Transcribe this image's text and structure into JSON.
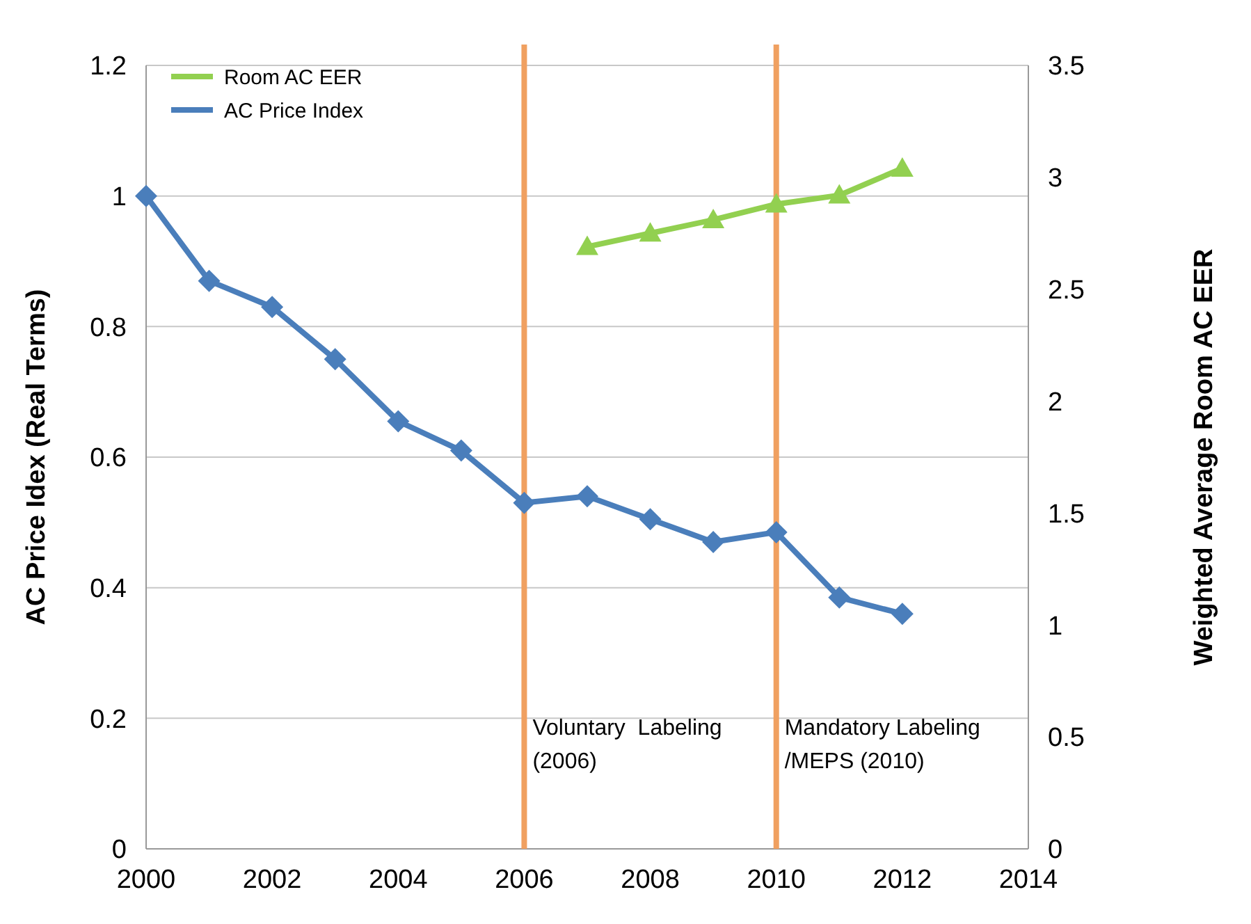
{
  "chart_data": {
    "type": "line",
    "xlabel": null,
    "ylabel": "AC Price Idex (Real Terms)",
    "y2label": "Weighted Average Room AC EER",
    "xlim": [
      2000,
      2014
    ],
    "xticks": [
      2000,
      2002,
      2004,
      2006,
      2008,
      2010,
      2012,
      2014
    ],
    "ylim": [
      0,
      1.2
    ],
    "yticks": [
      0,
      0.2,
      0.4,
      0.6,
      0.8,
      1,
      1.2
    ],
    "y2lim": [
      0,
      3.5
    ],
    "y2ticks": [
      0,
      0.5,
      1,
      1.5,
      2,
      2.5,
      3,
      3.5
    ],
    "grid": "y",
    "legend": "top left",
    "series": [
      {
        "name": "Room AC EER",
        "color": "#92d050",
        "axis": "y2",
        "marker": "triangle",
        "x": [
          2007,
          2008,
          2009,
          2010,
          2011,
          2012
        ],
        "values": [
          2.69,
          2.75,
          2.81,
          2.88,
          2.92,
          3.04
        ]
      },
      {
        "name": "AC Price Index",
        "color": "#4a7ebb",
        "marker": "diamond",
        "x": [
          2000,
          2001,
          2002,
          2003,
          2004,
          2005,
          2006,
          2007,
          2008,
          2009,
          2010,
          2011,
          2012
        ],
        "values": [
          1.0,
          0.87,
          0.83,
          0.75,
          0.655,
          0.61,
          0.53,
          0.54,
          0.505,
          0.47,
          0.485,
          0.385,
          0.36
        ]
      }
    ],
    "ref_lines": [
      {
        "axis": "x",
        "value": 2006,
        "label": "Voluntary  Labeling\n(2006)",
        "color": "#f0a060"
      },
      {
        "axis": "x",
        "value": 2010,
        "label": "Mandatory Labeling\n/MEPS (2010)",
        "color": "#f0a060"
      }
    ]
  }
}
